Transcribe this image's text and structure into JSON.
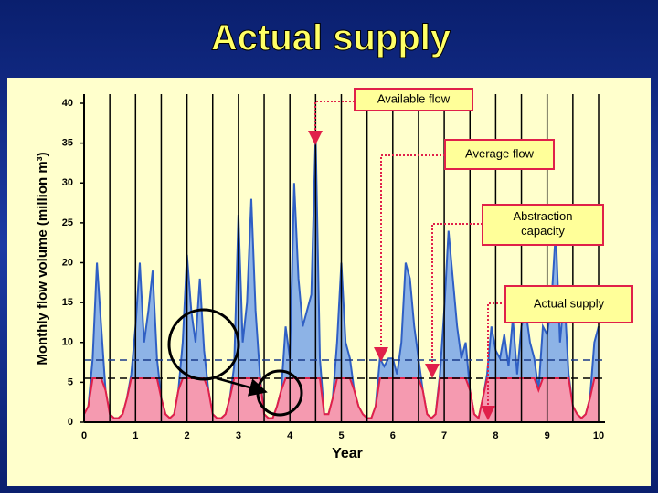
{
  "chart_data": {
    "type": "area",
    "title": "Actual supply",
    "x_label": "Year",
    "y_label": "Monthly flow volume (million m³)",
    "x": [
      0,
      0.083,
      0.167,
      0.25,
      0.333,
      0.417,
      0.5,
      0.583,
      0.667,
      0.75,
      0.833,
      0.917,
      1,
      1.083,
      1.167,
      1.25,
      1.333,
      1.417,
      1.5,
      1.583,
      1.667,
      1.75,
      1.833,
      1.917,
      2,
      2.083,
      2.167,
      2.25,
      2.333,
      2.417,
      2.5,
      2.583,
      2.667,
      2.75,
      2.833,
      2.917,
      3,
      3.083,
      3.167,
      3.25,
      3.333,
      3.417,
      3.5,
      3.583,
      3.667,
      3.75,
      3.833,
      3.917,
      4,
      4.083,
      4.167,
      4.25,
      4.333,
      4.417,
      4.5,
      4.583,
      4.667,
      4.75,
      4.833,
      4.917,
      5,
      5.083,
      5.167,
      5.25,
      5.333,
      5.417,
      5.5,
      5.583,
      5.667,
      5.75,
      5.833,
      5.917,
      6,
      6.083,
      6.167,
      6.25,
      6.333,
      6.417,
      6.5,
      6.583,
      6.667,
      6.75,
      6.833,
      6.917,
      7,
      7.083,
      7.167,
      7.25,
      7.333,
      7.417,
      7.5,
      7.583,
      7.667,
      7.75,
      7.833,
      7.917,
      8,
      8.083,
      8.167,
      8.25,
      8.333,
      8.417,
      8.5,
      8.583,
      8.667,
      8.75,
      8.833,
      8.917,
      9,
      9.083,
      9.167,
      9.25,
      9.333,
      9.417,
      9.5,
      9.583,
      9.667,
      9.75,
      9.833,
      9.917,
      10
    ],
    "series": [
      {
        "name": "Available flow",
        "color": "#2f5fc4",
        "fill": "#8db3e6",
        "values": [
          1,
          2,
          8,
          20,
          12,
          4,
          1,
          0.5,
          0.5,
          1,
          3,
          6,
          12,
          20,
          10,
          14,
          19,
          8,
          3,
          1,
          0.5,
          1,
          4,
          10,
          21,
          14,
          10,
          18,
          9,
          4,
          1,
          0.5,
          0.5,
          1,
          3,
          7,
          26,
          10,
          15,
          28,
          14,
          6,
          1,
          0.5,
          0.5,
          2,
          4,
          12,
          8,
          30,
          18,
          12,
          14,
          16,
          36,
          8,
          1,
          1,
          3,
          10,
          20,
          10,
          8,
          4,
          2,
          1,
          0.5,
          0.5,
          2,
          8,
          7,
          8,
          8,
          6,
          10,
          20,
          18,
          12,
          8,
          4,
          1,
          0.5,
          1,
          6,
          14,
          24,
          18,
          12,
          8,
          10,
          4,
          1,
          0.5,
          3,
          6,
          12,
          9,
          8,
          11,
          7,
          13,
          6,
          12,
          14,
          10,
          8,
          4,
          12,
          11,
          15,
          24,
          10,
          16,
          6,
          2,
          1,
          0.5,
          1,
          3,
          10,
          12
        ]
      },
      {
        "name": "Actual supply",
        "color": "#e0204a",
        "fill": "#f59ab0",
        "values": [
          1,
          2,
          5.5,
          5.5,
          5.5,
          4,
          1,
          0.5,
          0.5,
          1,
          3,
          5.5,
          5.5,
          5.5,
          5.5,
          5.5,
          5.5,
          5.5,
          3,
          1,
          0.5,
          1,
          4,
          5.5,
          5.5,
          5.5,
          5.5,
          5.5,
          5.5,
          4,
          1,
          0.5,
          0.5,
          1,
          3,
          5.5,
          5.5,
          5.5,
          5.5,
          5.5,
          5.5,
          5.5,
          1,
          0.5,
          0.5,
          2,
          4,
          5.5,
          5.5,
          5.5,
          5.5,
          5.5,
          5.5,
          5.5,
          5.5,
          5.5,
          1,
          1,
          3,
          5.5,
          5.5,
          5.5,
          5.5,
          4,
          2,
          1,
          0.5,
          0.5,
          2,
          5.5,
          5.5,
          5.5,
          5.5,
          5.5,
          5.5,
          5.5,
          5.5,
          5.5,
          5.5,
          4,
          1,
          0.5,
          1,
          5.5,
          5.5,
          5.5,
          5.5,
          5.5,
          5.5,
          5.5,
          4,
          1,
          0.5,
          3,
          5.5,
          5.5,
          5.5,
          5.5,
          5.5,
          5.5,
          5.5,
          5.5,
          5.5,
          5.5,
          5.5,
          5.5,
          4,
          5.5,
          5.5,
          5.5,
          5.5,
          5.5,
          5.5,
          5.5,
          2,
          1,
          0.5,
          1,
          3,
          5.5,
          5.5
        ]
      }
    ],
    "average_flow": 7.8,
    "abstraction_capacity": 5.5,
    "annotations": [
      "Available flow",
      "Average flow",
      "Abstraction capacity",
      "Actual supply"
    ],
    "xlim": [
      0,
      10
    ],
    "xticks": [
      0,
      1,
      2,
      3,
      4,
      5,
      6,
      7,
      8,
      9,
      10
    ],
    "minor_xticks": [
      0.5,
      1.5,
      2.5,
      3.5,
      4.5,
      5.5,
      6.5,
      7.5,
      8.5,
      9.5
    ],
    "ylim": [
      0,
      40
    ],
    "yticks": [
      0,
      5,
      10,
      15,
      20,
      25,
      30,
      35,
      40
    ],
    "grid": true
  }
}
